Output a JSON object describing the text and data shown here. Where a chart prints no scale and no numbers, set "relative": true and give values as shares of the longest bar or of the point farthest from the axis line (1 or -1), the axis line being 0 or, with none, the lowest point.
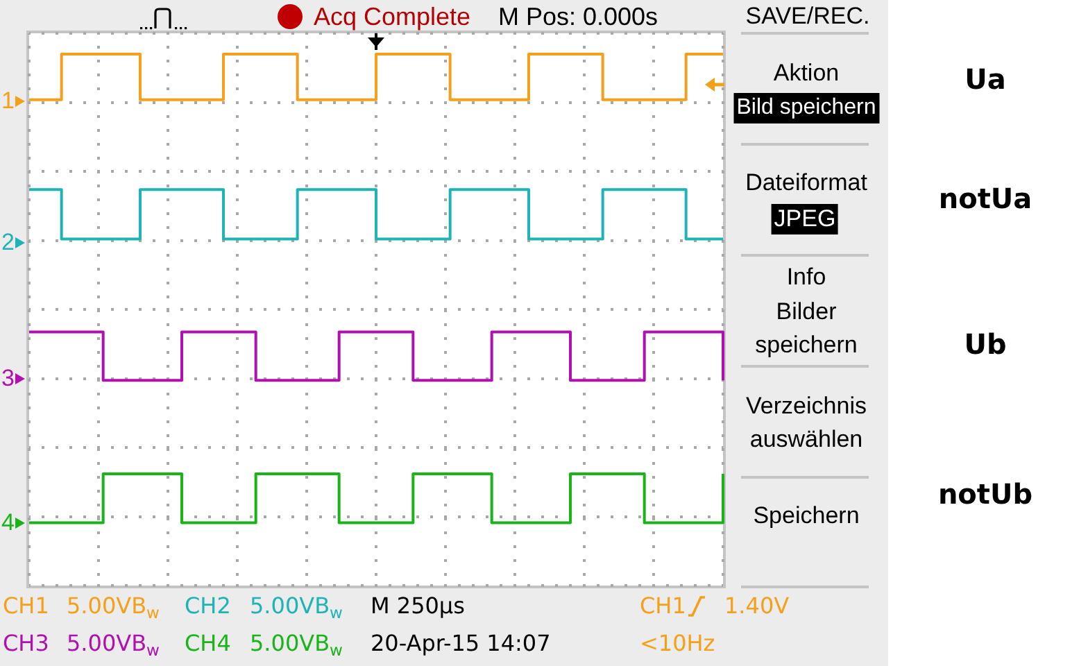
{
  "chart_data": {
    "type": "step",
    "relative": true,
    "grid": true,
    "categories": [
      null,
      null,
      null,
      null,
      null,
      null,
      null,
      null,
      null,
      null,
      null,
      null,
      null,
      null,
      null,
      null,
      null,
      null,
      null,
      null,
      null,
      null,
      null,
      null,
      null,
      null,
      null,
      null,
      null,
      null,
      null,
      null,
      null,
      null,
      null,
      null,
      null,
      null,
      null,
      null,
      null,
      null,
      null,
      null,
      null,
      null,
      null,
      null,
      null,
      null,
      null,
      null,
      null,
      null,
      null,
      null,
      null,
      null,
      null,
      null,
      null,
      null,
      null,
      null,
      null,
      null,
      null,
      null,
      null,
      null,
      null,
      null,
      null,
      null,
      null,
      null,
      null,
      null,
      null,
      null,
      null,
      null,
      null,
      null,
      null,
      null,
      null,
      null,
      null,
      null,
      null,
      null,
      null,
      null,
      null,
      null,
      null,
      null,
      null,
      null,
      null,
      null,
      null,
      null,
      null,
      null,
      null,
      null,
      null,
      null,
      null,
      null,
      null,
      null,
      null,
      null,
      null,
      null,
      null,
      null,
      null,
      null,
      null,
      null,
      null,
      null,
      null,
      null,
      null,
      null,
      null,
      null,
      null,
      null,
      null,
      null,
      null,
      null,
      null,
      null,
      null,
      null,
      null,
      null,
      null,
      null,
      null,
      null,
      null,
      null,
      null
    ],
    "series": [
      {
        "name": "Ua",
        "color": "#f5a01a",
        "values": [
          0.914,
          0.914,
          0.914,
          0.914,
          0.914,
          0.914,
          0.914,
          1,
          1,
          1,
          1,
          1,
          1,
          1,
          1,
          1,
          1,
          1,
          1,
          1,
          1,
          1,
          1,
          1,
          0.914,
          0.914,
          0.914,
          0.914,
          0.914,
          0.914,
          0.914,
          0.914,
          0.914,
          0.914,
          0.914,
          0.914,
          0.914,
          0.914,
          0.914,
          0.914,
          0.914,
          0.914,
          1,
          1,
          1,
          1,
          1,
          1,
          1,
          1,
          1,
          1,
          1,
          1,
          1,
          1,
          1,
          1,
          0.914,
          0.914,
          0.914,
          0.914,
          0.914,
          0.914,
          0.914,
          0.914,
          0.914,
          0.914,
          0.914,
          0.914,
          0.914,
          0.914,
          0.914,
          0.914,
          0.914,
          1,
          1,
          1,
          1,
          1,
          1,
          1,
          1,
          1,
          1,
          1,
          1,
          1,
          1,
          1,
          1,
          0.914,
          0.914,
          0.914,
          0.914,
          0.914,
          0.914,
          0.914,
          0.914,
          0.914,
          0.914,
          0.914,
          0.914,
          0.914,
          0.914,
          0.914,
          0.914,
          0.914,
          1,
          1,
          1,
          1,
          1,
          1,
          1,
          1,
          1,
          1,
          1,
          1,
          1,
          1,
          1,
          1,
          0.914,
          0.914,
          0.914,
          0.914,
          0.914,
          0.914,
          0.914,
          0.914,
          0.914,
          0.914,
          0.914,
          0.914,
          0.914,
          0.914,
          0.914,
          0.914,
          0.914,
          0.914,
          1,
          1,
          1,
          1,
          1,
          1,
          1,
          1,
          1
        ]
      },
      {
        "name": "notUa",
        "color": "#1eb4b6",
        "values": [
          0.745,
          0.745,
          0.745,
          0.745,
          0.745,
          0.745,
          0.745,
          0.652,
          0.652,
          0.652,
          0.652,
          0.652,
          0.652,
          0.652,
          0.652,
          0.652,
          0.652,
          0.652,
          0.652,
          0.652,
          0.652,
          0.652,
          0.652,
          0.652,
          0.745,
          0.745,
          0.745,
          0.745,
          0.745,
          0.745,
          0.745,
          0.745,
          0.745,
          0.745,
          0.745,
          0.745,
          0.745,
          0.745,
          0.745,
          0.745,
          0.745,
          0.745,
          0.652,
          0.652,
          0.652,
          0.652,
          0.652,
          0.652,
          0.652,
          0.652,
          0.652,
          0.652,
          0.652,
          0.652,
          0.652,
          0.652,
          0.652,
          0.652,
          0.745,
          0.745,
          0.745,
          0.745,
          0.745,
          0.745,
          0.745,
          0.745,
          0.745,
          0.745,
          0.745,
          0.745,
          0.745,
          0.745,
          0.745,
          0.745,
          0.745,
          0.652,
          0.652,
          0.652,
          0.652,
          0.652,
          0.652,
          0.652,
          0.652,
          0.652,
          0.652,
          0.652,
          0.652,
          0.652,
          0.652,
          0.652,
          0.652,
          0.745,
          0.745,
          0.745,
          0.745,
          0.745,
          0.745,
          0.745,
          0.745,
          0.745,
          0.745,
          0.745,
          0.745,
          0.745,
          0.745,
          0.745,
          0.745,
          0.745,
          0.652,
          0.652,
          0.652,
          0.652,
          0.652,
          0.652,
          0.652,
          0.652,
          0.652,
          0.652,
          0.652,
          0.652,
          0.652,
          0.652,
          0.652,
          0.652,
          0.745,
          0.745,
          0.745,
          0.745,
          0.745,
          0.745,
          0.745,
          0.745,
          0.745,
          0.745,
          0.745,
          0.745,
          0.745,
          0.745,
          0.745,
          0.745,
          0.745,
          0.745,
          0.652,
          0.652,
          0.652,
          0.652,
          0.652,
          0.652,
          0.652,
          0.652,
          0.652
        ]
      },
      {
        "name": "Ub",
        "color": "#b010b0",
        "values": [
          0.477,
          0.477,
          0.477,
          0.477,
          0.477,
          0.477,
          0.477,
          0.477,
          0.477,
          0.477,
          0.477,
          0.477,
          0.477,
          0.477,
          0.477,
          0.477,
          0.386,
          0.386,
          0.386,
          0.386,
          0.386,
          0.386,
          0.386,
          0.386,
          0.386,
          0.386,
          0.386,
          0.386,
          0.386,
          0.386,
          0.386,
          0.386,
          0.386,
          0.477,
          0.477,
          0.477,
          0.477,
          0.477,
          0.477,
          0.477,
          0.477,
          0.477,
          0.477,
          0.477,
          0.477,
          0.477,
          0.477,
          0.477,
          0.477,
          0.386,
          0.386,
          0.386,
          0.386,
          0.386,
          0.386,
          0.386,
          0.386,
          0.386,
          0.386,
          0.386,
          0.386,
          0.386,
          0.386,
          0.386,
          0.386,
          0.386,
          0.386,
          0.477,
          0.477,
          0.477,
          0.477,
          0.477,
          0.477,
          0.477,
          0.477,
          0.477,
          0.477,
          0.477,
          0.477,
          0.477,
          0.477,
          0.477,
          0.477,
          0.386,
          0.386,
          0.386,
          0.386,
          0.386,
          0.386,
          0.386,
          0.386,
          0.386,
          0.386,
          0.386,
          0.386,
          0.386,
          0.386,
          0.386,
          0.386,
          0.386,
          0.477,
          0.477,
          0.477,
          0.477,
          0.477,
          0.477,
          0.477,
          0.477,
          0.477,
          0.477,
          0.477,
          0.477,
          0.477,
          0.477,
          0.477,
          0.477,
          0.477,
          0.386,
          0.386,
          0.386,
          0.386,
          0.386,
          0.386,
          0.386,
          0.386,
          0.386,
          0.386,
          0.386,
          0.386,
          0.386,
          0.386,
          0.386,
          0.386,
          0.477,
          0.477,
          0.477,
          0.477,
          0.477,
          0.477,
          0.477,
          0.477,
          0.477,
          0.477,
          0.477,
          0.477,
          0.477,
          0.477,
          0.477,
          0.477,
          0.477,
          0.386
        ]
      },
      {
        "name": "notUb",
        "color": "#1ab41a",
        "values": [
          0.118,
          0.118,
          0.118,
          0.118,
          0.118,
          0.118,
          0.118,
          0.118,
          0.118,
          0.118,
          0.118,
          0.118,
          0.118,
          0.118,
          0.118,
          0.118,
          0.21,
          0.21,
          0.21,
          0.21,
          0.21,
          0.21,
          0.21,
          0.21,
          0.21,
          0.21,
          0.21,
          0.21,
          0.21,
          0.21,
          0.21,
          0.21,
          0.21,
          0.118,
          0.118,
          0.118,
          0.118,
          0.118,
          0.118,
          0.118,
          0.118,
          0.118,
          0.118,
          0.118,
          0.118,
          0.118,
          0.118,
          0.118,
          0.118,
          0.21,
          0.21,
          0.21,
          0.21,
          0.21,
          0.21,
          0.21,
          0.21,
          0.21,
          0.21,
          0.21,
          0.21,
          0.21,
          0.21,
          0.21,
          0.21,
          0.21,
          0.21,
          0.118,
          0.118,
          0.118,
          0.118,
          0.118,
          0.118,
          0.118,
          0.118,
          0.118,
          0.118,
          0.118,
          0.118,
          0.118,
          0.118,
          0.118,
          0.118,
          0.21,
          0.21,
          0.21,
          0.21,
          0.21,
          0.21,
          0.21,
          0.21,
          0.21,
          0.21,
          0.21,
          0.21,
          0.21,
          0.21,
          0.21,
          0.21,
          0.21,
          0.118,
          0.118,
          0.118,
          0.118,
          0.118,
          0.118,
          0.118,
          0.118,
          0.118,
          0.118,
          0.118,
          0.118,
          0.118,
          0.118,
          0.118,
          0.118,
          0.118,
          0.21,
          0.21,
          0.21,
          0.21,
          0.21,
          0.21,
          0.21,
          0.21,
          0.21,
          0.21,
          0.21,
          0.21,
          0.21,
          0.21,
          0.21,
          0.21,
          0.118,
          0.118,
          0.118,
          0.118,
          0.118,
          0.118,
          0.118,
          0.118,
          0.118,
          0.118,
          0.118,
          0.118,
          0.118,
          0.118,
          0.118,
          0.118,
          0.118,
          0.21
        ]
      }
    ],
    "annotations": [
      "Acq Complete",
      "M Pos: 0.000s",
      "SAVE/REC.",
      "Aktion",
      "Bild speichern",
      "Dateiformat",
      "JPEG",
      "Info",
      "Bilder\nspeichern",
      "Verzeichnis\nauswählen",
      "Speichern",
      "1",
      "2",
      "3",
      "4",
      "CH1",
      "5.00VB$_{w}$",
      "CH2",
      "5.00VB$_{w}$",
      "M 250µs",
      "CH1",
      "1.40V",
      "CH3",
      "5.00VB$_{w}$",
      "CH4",
      "5.00VB$_{w}$",
      "20-Apr-15 14:07",
      "<10Hz"
    ]
  }
}
